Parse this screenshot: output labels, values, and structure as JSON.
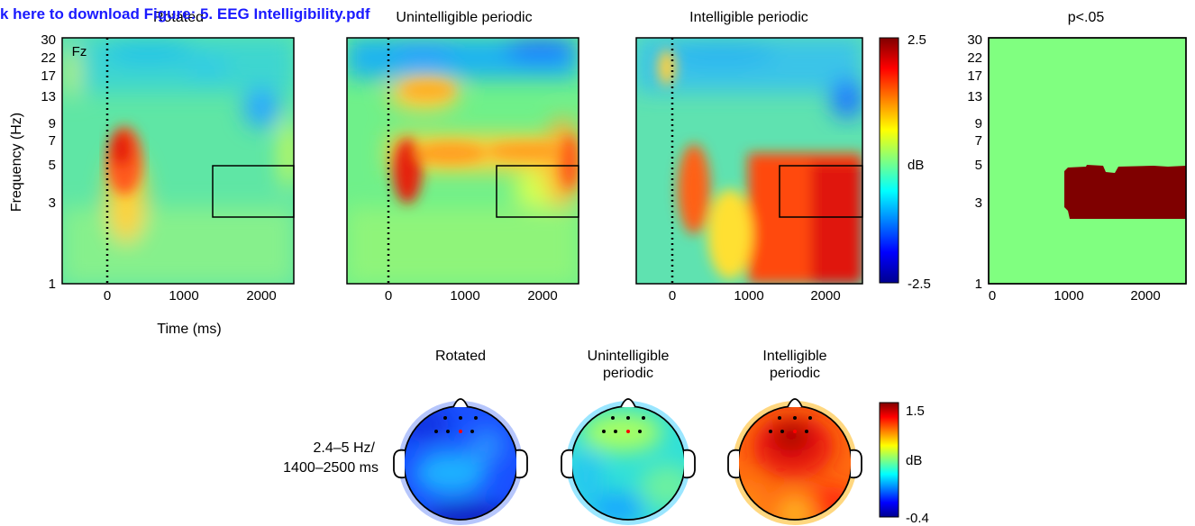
{
  "download_link": "k here to download Figure: 5. EEG Intelligibility.pdf",
  "colors": {
    "jet": [
      "#00008f",
      "#0000ff",
      "#0080ff",
      "#00ffff",
      "#80ff80",
      "#ffff00",
      "#ff8000",
      "#ff0000",
      "#800000"
    ],
    "sig_background": "#80ff80",
    "sig_region": "#7f0000",
    "link": "#1a1aff"
  },
  "chart_data": [
    {
      "type": "heatmap",
      "title": "Rotated",
      "annotation": "Fz",
      "xlabel": "Time (ms)",
      "ylabel": "Frequency (Hz)",
      "xticks": [
        0,
        1000,
        2000
      ],
      "yticks": [
        1,
        3,
        5,
        7,
        9,
        13,
        17,
        22,
        30
      ],
      "xlim": [
        -450,
        2450
      ],
      "ylim": [
        1,
        30
      ],
      "yscale": "log",
      "stimulus_onset_ms": 0,
      "roi": {
        "time_ms": [
          1400,
          2450
        ],
        "freq_hz": [
          2.4,
          5
        ]
      }
    },
    {
      "type": "heatmap",
      "title": "Unintelligible periodic",
      "xticks": [
        0,
        1000,
        2000
      ],
      "xlim": [
        -450,
        2450
      ],
      "ylim": [
        1,
        30
      ],
      "yscale": "log",
      "stimulus_onset_ms": 0,
      "roi": {
        "time_ms": [
          1400,
          2450
        ],
        "freq_hz": [
          2.4,
          5
        ]
      }
    },
    {
      "type": "heatmap",
      "title": "Intelligible periodic",
      "xticks": [
        0,
        1000,
        2000
      ],
      "xlim": [
        -450,
        2450
      ],
      "ylim": [
        1,
        30
      ],
      "yscale": "log",
      "stimulus_onset_ms": 0,
      "roi": {
        "time_ms": [
          1400,
          2450
        ],
        "freq_hz": [
          2.4,
          5
        ]
      },
      "colorbar": {
        "label": "dB",
        "min": -2.5,
        "max": 2.5,
        "ticks": [
          "2.5",
          "-2.5"
        ]
      }
    },
    {
      "type": "heatmap",
      "title": "p<.05",
      "xticks": [
        0,
        1000,
        2000
      ],
      "yticks": [
        1,
        3,
        5,
        7,
        9,
        13,
        17,
        22,
        30
      ],
      "xlim": [
        0,
        2450
      ],
      "ylim": [
        1,
        30
      ],
      "yscale": "log",
      "significant_region": {
        "time_ms": [
          980,
          2450
        ],
        "freq_hz": [
          2.4,
          4.7
        ]
      }
    }
  ],
  "topoplots": {
    "row_label_line1": "2.4–5 Hz/",
    "row_label_line2": "1400–2500 ms",
    "maps": [
      {
        "title_line1": "Rotated",
        "title_line2": ""
      },
      {
        "title_line1": "Unintelligible",
        "title_line2": "periodic"
      },
      {
        "title_line1": "Intelligible",
        "title_line2": "periodic"
      }
    ],
    "colorbar": {
      "label": "dB",
      "min": -0.4,
      "max": 1.5,
      "ticks": [
        "1.5",
        "-0.4"
      ]
    }
  }
}
